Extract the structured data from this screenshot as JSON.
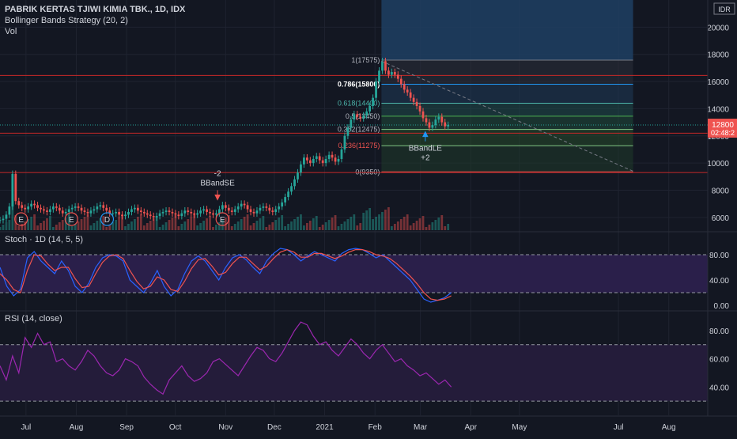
{
  "header": {
    "symbol": "PABRIK KERTAS TJIWI KIMIA TBK., 1D, IDX",
    "strategy": "Bollinger Bands Strategy (20, 2)",
    "volume": "Vol",
    "currency": "IDR"
  },
  "price_tag": {
    "value": "12800",
    "countdown": "02:48:2"
  },
  "colors": {
    "background": "#131722",
    "up": "#26a69a",
    "down": "#ef5350",
    "text": "#d1d4dc",
    "fib_line_786": "#2196f3",
    "fib_text_618": "#4db6ac",
    "fib_zero_236_text": "#ef5350",
    "stoch_band": "#2a1f4a",
    "rsi_band": "#241c3a",
    "rsi_line": "#9c27b0",
    "stoch_k": "#2962ff",
    "stoch_d": "#ef5350",
    "price_tag": "#ef5350",
    "projection_fill": "#1e3f63"
  },
  "chart_data": [
    {
      "type": "candlestick",
      "title": "PABRIK KERTAS TJIWI KIMIA TBK., 1D, IDX",
      "x_ticks": [
        "Jul",
        "Aug",
        "Sep",
        "Oct",
        "Nov",
        "Dec",
        "2021",
        "Feb",
        "Mar",
        "Apr",
        "May",
        "Jul",
        "Aug"
      ],
      "y_ticks": [
        6000,
        8000,
        10000,
        12000,
        14000,
        16000,
        18000,
        20000
      ],
      "ylim": [
        5000,
        22000
      ],
      "x_range": [
        "2020-06-15",
        "2021-08-25"
      ],
      "last_price": 12800,
      "approx_close_series": {
        "start": "2020-06-15",
        "step_days": 1,
        "values": [
          5800,
          5900,
          6200,
          6800,
          9200,
          7200,
          6900,
          6700,
          6600,
          6800,
          7000,
          6900,
          6700,
          6600,
          6500,
          6400,
          6600,
          6800,
          6700,
          6500,
          6300,
          6400,
          6600,
          6700,
          6800,
          6700,
          6500,
          6400,
          6300,
          6500,
          6600,
          6800,
          6900,
          6700,
          6500,
          6300,
          6300,
          6400,
          6200,
          6100,
          6200,
          6400,
          6600,
          6700,
          6500,
          6400,
          6300,
          6200,
          6100,
          6000,
          6100,
          6300,
          6400,
          6500,
          6400,
          6300,
          6200,
          6100,
          6300,
          6500,
          6400,
          6300,
          6200,
          6300,
          6500,
          6600,
          6400,
          6300,
          6200,
          6300,
          6600,
          6900,
          6700,
          6500,
          6400,
          6600,
          6800,
          7000,
          6900,
          6600,
          6400,
          6300,
          6500,
          6700,
          6800,
          6700,
          6500,
          6400,
          6600,
          6800,
          7100,
          7500,
          7900,
          8300,
          8800,
          9300,
          9900,
          10400,
          10200,
          10000,
          10300,
          10500,
          10200,
          10000,
          10300,
          10600,
          10400,
          10100,
          10300,
          11000,
          12000,
          12600,
          13200,
          13600,
          13400,
          13300,
          13500,
          13800,
          14200,
          14800,
          16000,
          16800,
          17500,
          16800,
          16500,
          16700,
          16500,
          16200,
          15800,
          15400,
          15200,
          14800,
          14500,
          14200,
          13800,
          13300,
          13000,
          12600,
          12800,
          13200,
          13400,
          13000,
          12700,
          12800
        ]
      },
      "fibonacci_retracement": [
        {
          "label": "1(17575)",
          "level": 1,
          "price": 17575
        },
        {
          "label": "0.786(15800)",
          "level": 0.786,
          "price": 15800
        },
        {
          "label": "0.618(14400)",
          "level": 0.618,
          "price": 14400
        },
        {
          "label": "0.5(13450)",
          "level": 0.5,
          "price": 13450
        },
        {
          "label": "0.382(12475)",
          "level": 0.382,
          "price": 12475
        },
        {
          "label": "0.236(11275)",
          "level": 0.236,
          "price": 11275
        },
        {
          "label": "0(9350)",
          "level": 0,
          "price": 9350
        }
      ],
      "horizontal_lines": [
        16450,
        12200,
        9300
      ],
      "trendline": {
        "from": {
          "date": "2021-02-05",
          "price": 17500
        },
        "to": {
          "date": "2021-07-10",
          "price": 9400
        }
      },
      "projection_box": {
        "from_date": "2021-02-05",
        "to_date": "2021-07-10",
        "from_price": 17575,
        "to_price": 22000
      },
      "signals": [
        {
          "label": "-2",
          "name": "BBandSE",
          "date": "2020-10-27",
          "direction": "short"
        },
        {
          "label": "+2",
          "name": "BBandLE",
          "date": "2021-03-04",
          "direction": "long"
        }
      ],
      "event_markers": [
        {
          "label": "E",
          "date": "2020-06-28"
        },
        {
          "label": "E",
          "date": "2020-07-29"
        },
        {
          "label": "D",
          "date": "2020-08-20"
        },
        {
          "label": "E",
          "date": "2020-10-30"
        }
      ]
    },
    {
      "type": "line",
      "title": "Stoch · 1D (14, 5, 5)",
      "y_ticks": [
        0,
        40,
        80
      ],
      "y_tick_labels": [
        "0.00",
        "40.00",
        "80.00"
      ],
      "ylim": [
        0,
        100
      ],
      "band": [
        20,
        80
      ],
      "series": [
        {
          "values": [
            60,
            30,
            15,
            25,
            75,
            85,
            70,
            60,
            50,
            70,
            55,
            30,
            20,
            35,
            60,
            75,
            80,
            78,
            70,
            40,
            30,
            20,
            35,
            55,
            30,
            15,
            25,
            50,
            70,
            78,
            70,
            55,
            40,
            60,
            75,
            80,
            72,
            60,
            50,
            70,
            82,
            90,
            88,
            80,
            70,
            78,
            85,
            80,
            75,
            70,
            82,
            88,
            90,
            88,
            82,
            75,
            80,
            70,
            60,
            50,
            40,
            25,
            10,
            5,
            8,
            12,
            20
          ]
        },
        {
          "values": [
            50,
            40,
            25,
            20,
            55,
            80,
            78,
            65,
            55,
            60,
            60,
            42,
            28,
            30,
            50,
            68,
            78,
            80,
            74,
            55,
            38,
            26,
            30,
            45,
            40,
            25,
            22,
            38,
            58,
            72,
            74,
            62,
            48,
            52,
            66,
            76,
            76,
            66,
            56,
            62,
            74,
            84,
            88,
            84,
            76,
            76,
            82,
            82,
            78,
            74,
            78,
            84,
            88,
            88,
            85,
            80,
            78,
            74,
            66,
            56,
            46,
            34,
            20,
            10,
            8,
            10,
            15
          ]
        }
      ]
    },
    {
      "type": "line",
      "title": "RSI (14, close)",
      "y_ticks": [
        40,
        60,
        80
      ],
      "y_tick_labels": [
        "40.00",
        "60.00",
        "80.00"
      ],
      "ylim": [
        20,
        90
      ],
      "band": [
        30,
        70
      ],
      "series": [
        {
          "values": [
            55,
            45,
            62,
            50,
            75,
            68,
            78,
            70,
            72,
            58,
            60,
            55,
            52,
            58,
            66,
            62,
            55,
            50,
            48,
            52,
            60,
            58,
            55,
            47,
            42,
            38,
            35,
            45,
            50,
            55,
            48,
            44,
            46,
            50,
            58,
            60,
            56,
            52,
            48,
            55,
            62,
            68,
            66,
            60,
            58,
            64,
            72,
            80,
            86,
            84,
            76,
            70,
            72,
            66,
            62,
            68,
            74,
            70,
            64,
            60,
            66,
            70,
            64,
            58,
            60,
            55,
            52,
            48,
            50,
            46,
            42,
            45,
            40
          ]
        }
      ]
    }
  ]
}
